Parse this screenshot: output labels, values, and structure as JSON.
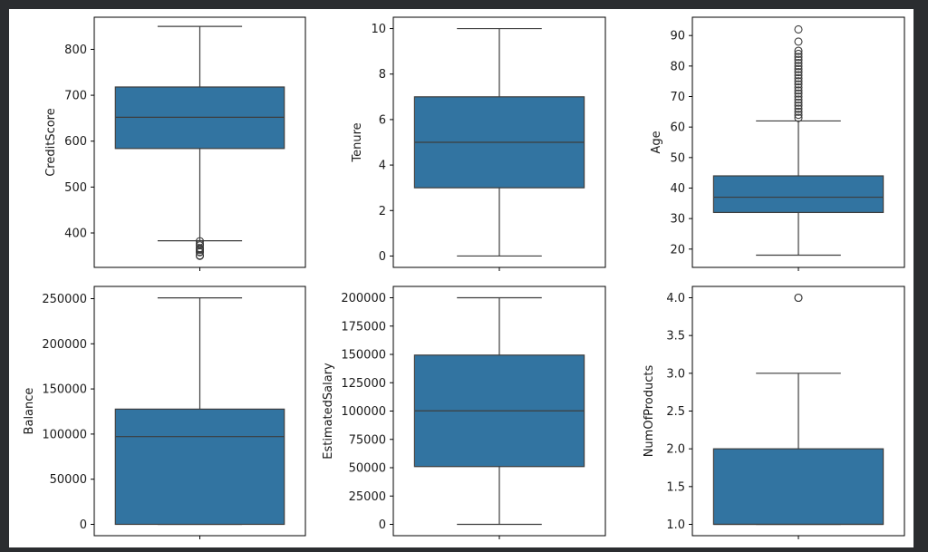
{
  "chart_data": [
    {
      "type": "box",
      "ylabel": "CreditScore",
      "ylim": [
        325,
        870
      ],
      "yticks": [
        400,
        500,
        600,
        700,
        800
      ],
      "ytick_labels": [
        "400",
        "500",
        "600",
        "700",
        "800"
      ],
      "color": "#3274a1",
      "box": {
        "min": 383,
        "q1": 584,
        "median": 652,
        "q3": 718,
        "max": 850,
        "outliers": [
          350,
          351,
          358,
          359,
          363,
          365,
          367,
          373,
          376,
          382
        ]
      }
    },
    {
      "type": "box",
      "ylabel": "Tenure",
      "ylim": [
        -0.5,
        10.5
      ],
      "yticks": [
        0,
        2,
        4,
        6,
        8,
        10
      ],
      "ytick_labels": [
        "0",
        "2",
        "4",
        "6",
        "8",
        "10"
      ],
      "color": "#3274a1",
      "box": {
        "min": 0,
        "q1": 3,
        "median": 5,
        "q3": 7,
        "max": 10,
        "outliers": []
      }
    },
    {
      "type": "box",
      "ylabel": "Age",
      "ylim": [
        14,
        96
      ],
      "yticks": [
        20,
        30,
        40,
        50,
        60,
        70,
        80,
        90
      ],
      "ytick_labels": [
        "20",
        "30",
        "40",
        "50",
        "60",
        "70",
        "80",
        "90"
      ],
      "color": "#3274a1",
      "box": {
        "min": 18,
        "q1": 32,
        "median": 37,
        "q3": 44,
        "max": 62,
        "outliers": [
          63,
          64,
          65,
          66,
          67,
          68,
          69,
          70,
          71,
          72,
          73,
          74,
          75,
          76,
          77,
          78,
          79,
          80,
          81,
          82,
          83,
          84,
          85,
          88,
          92
        ]
      }
    },
    {
      "type": "box",
      "ylabel": "Balance",
      "ylim": [
        -12550,
        263550
      ],
      "yticks": [
        0,
        50000,
        100000,
        150000,
        200000,
        250000
      ],
      "ytick_labels": [
        "0",
        "50000",
        "100000",
        "150000",
        "200000",
        "250000"
      ],
      "color": "#3274a1",
      "box": {
        "min": 0,
        "q1": 0,
        "median": 97199,
        "q3": 127644,
        "max": 250898,
        "outliers": []
      }
    },
    {
      "type": "box",
      "ylabel": "EstimatedSalary",
      "ylim": [
        -10000,
        210000
      ],
      "yticks": [
        0,
        25000,
        50000,
        75000,
        100000,
        125000,
        150000,
        175000,
        200000
      ],
      "ytick_labels": [
        "0",
        "25000",
        "50000",
        "75000",
        "100000",
        "125000",
        "150000",
        "175000",
        "200000"
      ],
      "color": "#3274a1",
      "box": {
        "min": 12,
        "q1": 51002,
        "median": 100194,
        "q3": 149388,
        "max": 199992,
        "outliers": []
      }
    },
    {
      "type": "box",
      "ylabel": "NumOfProducts",
      "ylim": [
        0.85,
        4.15
      ],
      "yticks": [
        1.0,
        1.5,
        2.0,
        2.5,
        3.0,
        3.5,
        4.0
      ],
      "ytick_labels": [
        "1.0",
        "1.5",
        "2.0",
        "2.5",
        "3.0",
        "3.5",
        "4.0"
      ],
      "color": "#3274a1",
      "box": {
        "min": 1,
        "q1": 1,
        "median": 1,
        "q3": 2,
        "max": 3,
        "outliers": [
          4,
          4
        ]
      }
    }
  ]
}
